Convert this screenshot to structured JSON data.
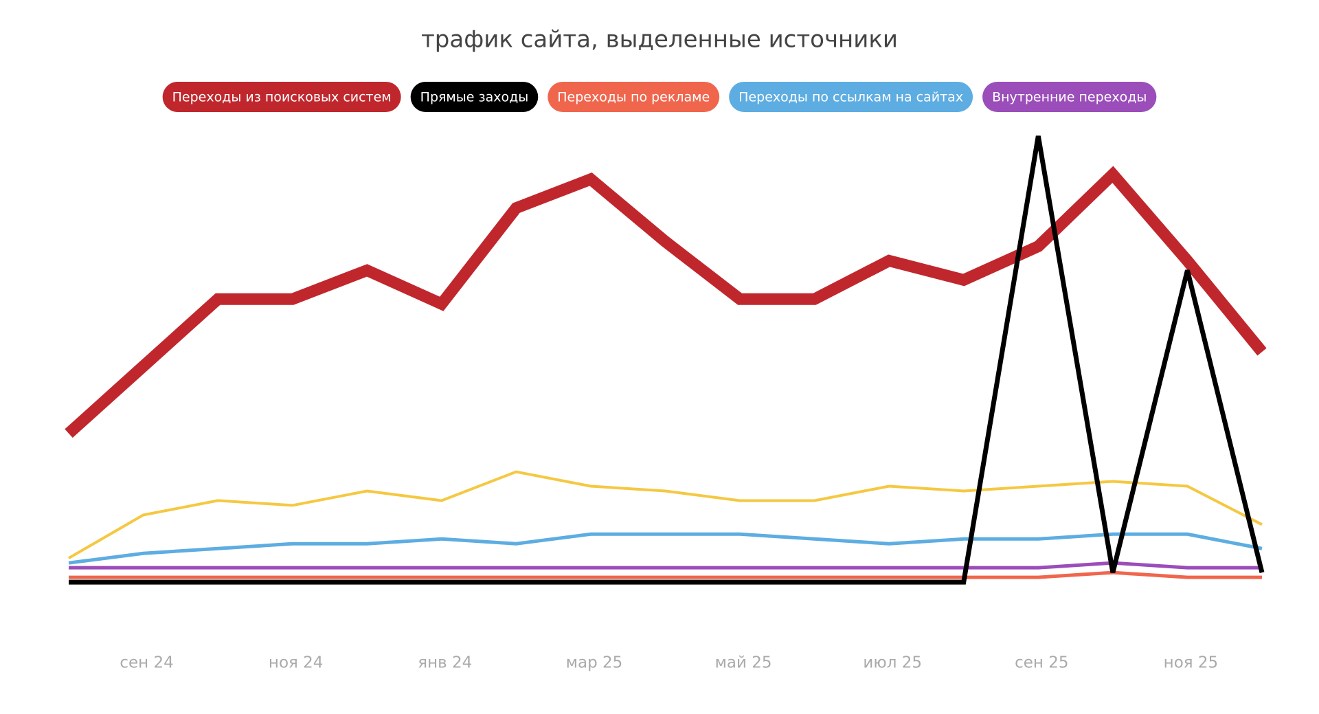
{
  "chart_data": {
    "type": "line",
    "title": "трафик сайта, выделенные источники",
    "categories": [
      null,
      "сен 24",
      null,
      "ноя 24",
      null,
      "янв 24",
      null,
      "мар 25",
      null,
      "май 25",
      null,
      "июл 25",
      null,
      "сен 25",
      null,
      "ноя 25",
      null
    ],
    "ylim": [
      0,
      100
    ],
    "series": [
      {
        "color": "#f5c842",
        "width": 4,
        "values": [
          10,
          19,
          22,
          21,
          24,
          22,
          28,
          25,
          24,
          22,
          22,
          25,
          24,
          25,
          26,
          25,
          17
        ]
      },
      {
        "name": "Переходы по ссылкам на сайтах",
        "color": "#5dade2",
        "width": 5,
        "values": [
          9,
          11,
          12,
          13,
          13,
          14,
          13,
          15,
          15,
          15,
          14,
          13,
          14,
          14,
          15,
          15,
          12
        ]
      },
      {
        "name": "Внутренние переходы",
        "color": "#9b4dba",
        "width": 5,
        "values": [
          8,
          8,
          8,
          8,
          8,
          8,
          8,
          8,
          8,
          8,
          8,
          8,
          8,
          8,
          9,
          8,
          8
        ]
      },
      {
        "name": "Переходы по рекламе",
        "color": "#f0664d",
        "width": 5,
        "values": [
          6,
          6,
          6,
          6,
          6,
          6,
          6,
          6,
          6,
          6,
          6,
          6,
          6,
          6,
          7,
          6,
          6
        ]
      },
      {
        "name": "Переходы из поисковых систем",
        "color": "#c0272d",
        "width": 17,
        "values": [
          36,
          50,
          64,
          64,
          70,
          63,
          83,
          89,
          76,
          64,
          64,
          72,
          68,
          75,
          90,
          72,
          53
        ]
      },
      {
        "name": "Прямые заходы",
        "color": "#000000",
        "width": 7,
        "values": [
          5,
          5,
          5,
          5,
          5,
          5,
          5,
          5,
          5,
          5,
          5,
          5,
          5,
          98,
          7,
          70,
          7
        ]
      }
    ],
    "legend_order": [
      4,
      5,
      3,
      1,
      2
    ]
  }
}
